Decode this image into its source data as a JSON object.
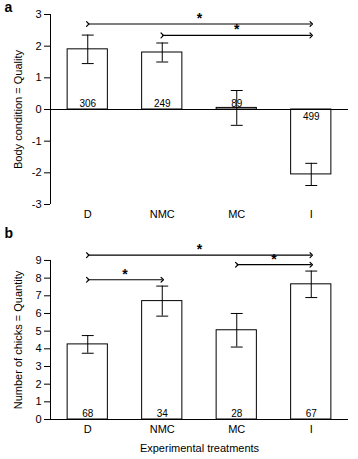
{
  "chart_data": [
    {
      "type": "bar",
      "title": "a",
      "ylabel": "Body condition = Quality",
      "categories": [
        "D",
        "NMC",
        "MC",
        "I"
      ],
      "values": [
        1.9,
        1.8,
        0.05,
        -2.05
      ],
      "errors": [
        0.45,
        0.3,
        0.55,
        0.35
      ],
      "n": [
        306,
        249,
        89,
        499
      ],
      "color": "#ffffff",
      "ylim": [
        -3,
        3
      ],
      "yticks": [
        -3,
        -2,
        -1,
        0,
        1,
        2,
        3
      ],
      "comparisons": [
        {
          "from": "D",
          "to": "I",
          "label": "*"
        },
        {
          "from": "NMC",
          "to": "I",
          "label": "*"
        }
      ]
    },
    {
      "type": "bar",
      "title": "b",
      "xlabel": "Experimental treatments",
      "ylabel": "Number of chicks = Quantity",
      "categories": [
        "D",
        "NMC",
        "MC",
        "I"
      ],
      "values": [
        4.25,
        6.7,
        5.05,
        7.65
      ],
      "errors": [
        0.5,
        0.85,
        0.95,
        0.75
      ],
      "n": [
        68,
        34,
        28,
        67
      ],
      "color": "#ffffff",
      "ylim": [
        0,
        9
      ],
      "yticks": [
        0,
        1,
        2,
        3,
        4,
        5,
        6,
        7,
        8,
        9
      ],
      "comparisons": [
        {
          "from": "D",
          "to": "I",
          "label": "*"
        },
        {
          "from": "D",
          "to": "NMC",
          "label": "*"
        },
        {
          "from": "MC",
          "to": "I",
          "label": "*"
        }
      ]
    }
  ]
}
